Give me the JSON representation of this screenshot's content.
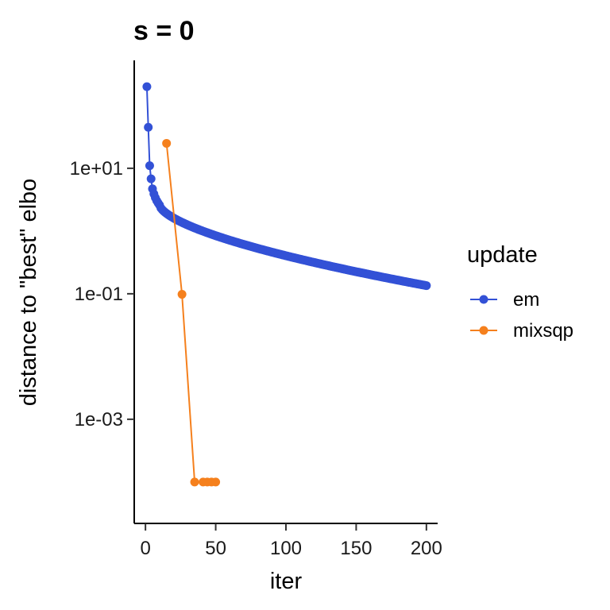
{
  "chart_data": {
    "type": "line",
    "title": "s = 0",
    "xlabel": "iter",
    "ylabel": "distance to \"best\" elbo",
    "xlim": [
      -8,
      208
    ],
    "ylim_log10": [
      -4.66,
      2.72
    ],
    "y_scale": "log10",
    "grid": false,
    "legend": {
      "title": "update",
      "placement": "right"
    },
    "x_ticks": [
      0,
      50,
      100,
      150,
      200
    ],
    "x_tick_labels": [
      "0",
      "50",
      "100",
      "150",
      "200"
    ],
    "y_ticks": [
      10,
      0.1,
      0.001
    ],
    "y_tick_labels": [
      "1e+01",
      "1e-01",
      "1e-03"
    ],
    "series": [
      {
        "name": "em",
        "color": "#3351d6",
        "points": [
          [
            1,
            200
          ],
          [
            2,
            45
          ],
          [
            3,
            11
          ],
          [
            4,
            6.8
          ],
          [
            5,
            4.7
          ],
          [
            6,
            3.9
          ],
          [
            7,
            3.4
          ],
          [
            8,
            3.05
          ],
          [
            9,
            2.8
          ],
          [
            10,
            2.6
          ]
        ],
        "decay": {
          "x_from": 10,
          "x_to": 200,
          "y_from": 2.6,
          "y_to": 0.135
        }
      },
      {
        "name": "mixsqp",
        "color": "#f5801d",
        "points": [
          [
            15,
            25
          ],
          [
            26,
            0.098
          ],
          [
            35,
            0.0001
          ],
          [
            41,
            0.0001
          ],
          [
            44,
            0.0001
          ],
          [
            47,
            0.0001
          ],
          [
            50,
            0.0001
          ]
        ]
      }
    ]
  }
}
